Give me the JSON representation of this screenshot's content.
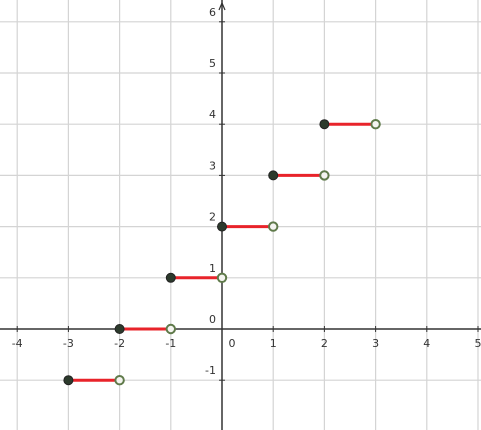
{
  "chart_data": {
    "type": "line",
    "title": "",
    "xlabel": "",
    "ylabel": "",
    "xlim": [
      -4,
      5
    ],
    "ylim": [
      -1.7,
      6.2
    ],
    "grid": true,
    "x_ticks": [
      -4,
      -3,
      -2,
      -1,
      1,
      2,
      3,
      4,
      5
    ],
    "x_tick_labels": [
      "-4",
      "-3",
      "-2",
      "-1",
      "1",
      "2",
      "3",
      "4",
      "5"
    ],
    "y_ticks": [
      -1,
      1,
      2,
      3,
      4,
      5,
      6
    ],
    "y_tick_labels": [
      "-1",
      "1",
      "2",
      "3",
      "4",
      "5",
      "6"
    ],
    "origin_label": "0",
    "series": [
      {
        "segments": [
          {
            "x_start": -3,
            "x_end": -2,
            "y": -1
          },
          {
            "x_start": -2,
            "x_end": -1,
            "y": 0
          },
          {
            "x_start": -1,
            "x_end": 0,
            "y": 1
          },
          {
            "x_start": 0,
            "x_end": 1,
            "y": 2
          },
          {
            "x_start": 1,
            "x_end": 2,
            "y": 3
          },
          {
            "x_start": 2,
            "x_end": 3,
            "y": 4
          }
        ],
        "closed_endpoint": "left",
        "open_endpoint": "right"
      }
    ],
    "colors": {
      "segment": "#e8232a",
      "closed_point": "#2c3a2c",
      "open_point_stroke": "#5f7a4a",
      "open_point_fill": "#f4f4f0",
      "axis": "#333333",
      "grid": "#d4d4d4"
    }
  }
}
